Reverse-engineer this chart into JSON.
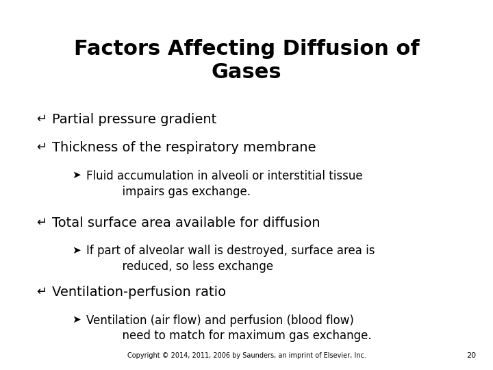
{
  "title_line1": "Factors Affecting Diffusion of",
  "title_line2": "Gases",
  "background_color": "#ffffff",
  "text_color": "#000000",
  "title_fontsize": 22,
  "body_fontsize": 14,
  "sub_fontsize": 12,
  "footer_text": "Copyright © 2014, 2011, 2006 by Saunders, an imprint of Elsevier, Inc.",
  "page_number": "20",
  "bullet_symbol": "↵",
  "sub_bullet_symbol": "➤",
  "items": [
    {
      "type": "bullet",
      "text": "Partial pressure gradient"
    },
    {
      "type": "bullet",
      "text": "Thickness of the respiratory membrane"
    },
    {
      "type": "sub",
      "text": "Fluid accumulation in alveoli or interstitial tissue\n          impairs gas exchange."
    },
    {
      "type": "bullet",
      "text": "Total surface area available for diffusion"
    },
    {
      "type": "sub",
      "text": "If part of alveolar wall is destroyed, surface area is\n          reduced, so less exchange"
    },
    {
      "type": "bullet",
      "text": "Ventilation-perfusion ratio"
    },
    {
      "type": "sub",
      "text": "Ventilation (air flow) and perfusion (blood flow)\n          need to match for maximum gas exchange."
    }
  ]
}
